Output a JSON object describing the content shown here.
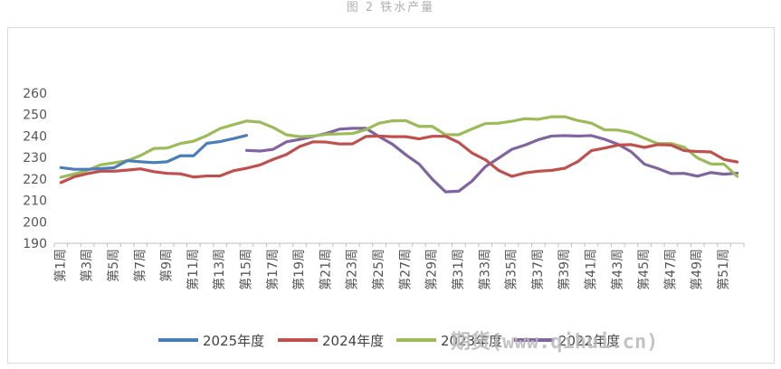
{
  "figure": {
    "caption": "图 2 铁水产量",
    "watermark": "期货(www.qihui.cn)"
  },
  "chart_data": {
    "type": "line",
    "title": "图 2 铁水产量",
    "xlabel": "",
    "ylabel": "",
    "ylim": [
      190,
      260
    ],
    "yticks": [
      190,
      200,
      210,
      220,
      230,
      240,
      250,
      260
    ],
    "x": [
      1,
      2,
      3,
      4,
      5,
      6,
      7,
      8,
      9,
      10,
      11,
      12,
      13,
      14,
      15,
      16,
      17,
      18,
      19,
      20,
      21,
      22,
      23,
      24,
      25,
      26,
      27,
      28,
      29,
      30,
      31,
      32,
      33,
      34,
      35,
      36,
      37,
      38,
      39,
      40,
      41,
      42,
      43,
      44,
      45,
      46,
      47,
      48,
      49,
      50,
      51,
      52
    ],
    "xtick_labels": [
      "第1周",
      "第3周",
      "第5周",
      "第7周",
      "第9周",
      "第11周",
      "第13周",
      "第15周",
      "第17周",
      "第19周",
      "第21周",
      "第23周",
      "第25周",
      "第27周",
      "第29周",
      "第31周",
      "第33周",
      "第35周",
      "第37周",
      "第39周",
      "第41周",
      "第43周",
      "第45周",
      "第47周",
      "第49周",
      "第51周"
    ],
    "grid": false,
    "legend_position": "bottom",
    "series": [
      {
        "name": "2025年度",
        "color": "#4a7ebb",
        "values": [
          225.3,
          224.5,
          224.5,
          224.8,
          225.2,
          228.5,
          228.0,
          227.6,
          228.0,
          230.8,
          230.8,
          236.6,
          237.4,
          238.8,
          240.3,
          null,
          null,
          null,
          null,
          null,
          null,
          null,
          null,
          null,
          null,
          null,
          null,
          null,
          null,
          null,
          null,
          null,
          null,
          null,
          null,
          null,
          null,
          null,
          null,
          null,
          null,
          null,
          null,
          null,
          null,
          null,
          null,
          null,
          null,
          null,
          null,
          null
        ]
      },
      {
        "name": "2024年度",
        "color": "#c0504d",
        "values": [
          218.3,
          221.0,
          222.5,
          223.6,
          223.6,
          224.1,
          224.7,
          223.4,
          222.6,
          222.4,
          220.9,
          221.4,
          221.4,
          223.8,
          225.0,
          226.5,
          229.1,
          231.4,
          235.1,
          237.3,
          237.2,
          236.3,
          236.4,
          239.8,
          240.0,
          239.7,
          239.7,
          238.7,
          239.9,
          239.9,
          237.0,
          232.1,
          229.0,
          224.0,
          221.2,
          222.8,
          223.6,
          224.0,
          225.0,
          228.2,
          233.2,
          234.4,
          235.8,
          236.0,
          234.7,
          236.0,
          235.8,
          233.2,
          232.8,
          232.6,
          229.1,
          227.9
        ]
      },
      {
        "name": "2023年度",
        "color": "#9bbb59",
        "values": [
          220.8,
          222.3,
          224.0,
          226.6,
          227.5,
          228.5,
          230.9,
          234.2,
          234.4,
          236.5,
          237.6,
          240.2,
          243.5,
          245.3,
          247.0,
          246.5,
          244.0,
          240.6,
          239.7,
          240.0,
          240.8,
          241.0,
          241.2,
          243.0,
          246.0,
          247.1,
          247.2,
          244.5,
          244.5,
          240.6,
          240.6,
          243.3,
          245.8,
          246.0,
          246.9,
          248.1,
          247.8,
          249.0,
          249.0,
          247.2,
          246.0,
          242.9,
          242.8,
          241.6,
          239.0,
          236.5,
          236.5,
          234.8,
          229.8,
          227.0,
          226.9,
          221.2
        ]
      },
      {
        "name": "2022年度",
        "color": "#8064a2",
        "values": [
          null,
          null,
          null,
          null,
          null,
          null,
          null,
          null,
          null,
          null,
          null,
          null,
          null,
          null,
          233.3,
          233.0,
          233.8,
          237.3,
          238.4,
          239.8,
          241.2,
          243.2,
          243.6,
          243.6,
          239.7,
          236.2,
          231.3,
          227.0,
          219.9,
          214.0,
          214.3,
          219.0,
          225.7,
          229.7,
          233.8,
          235.8,
          238.3,
          240.0,
          240.2,
          240.0,
          240.2,
          238.5,
          236.2,
          232.7,
          226.9,
          224.9,
          222.5,
          222.6,
          221.3,
          223.0,
          222.2,
          222.7
        ]
      }
    ]
  }
}
